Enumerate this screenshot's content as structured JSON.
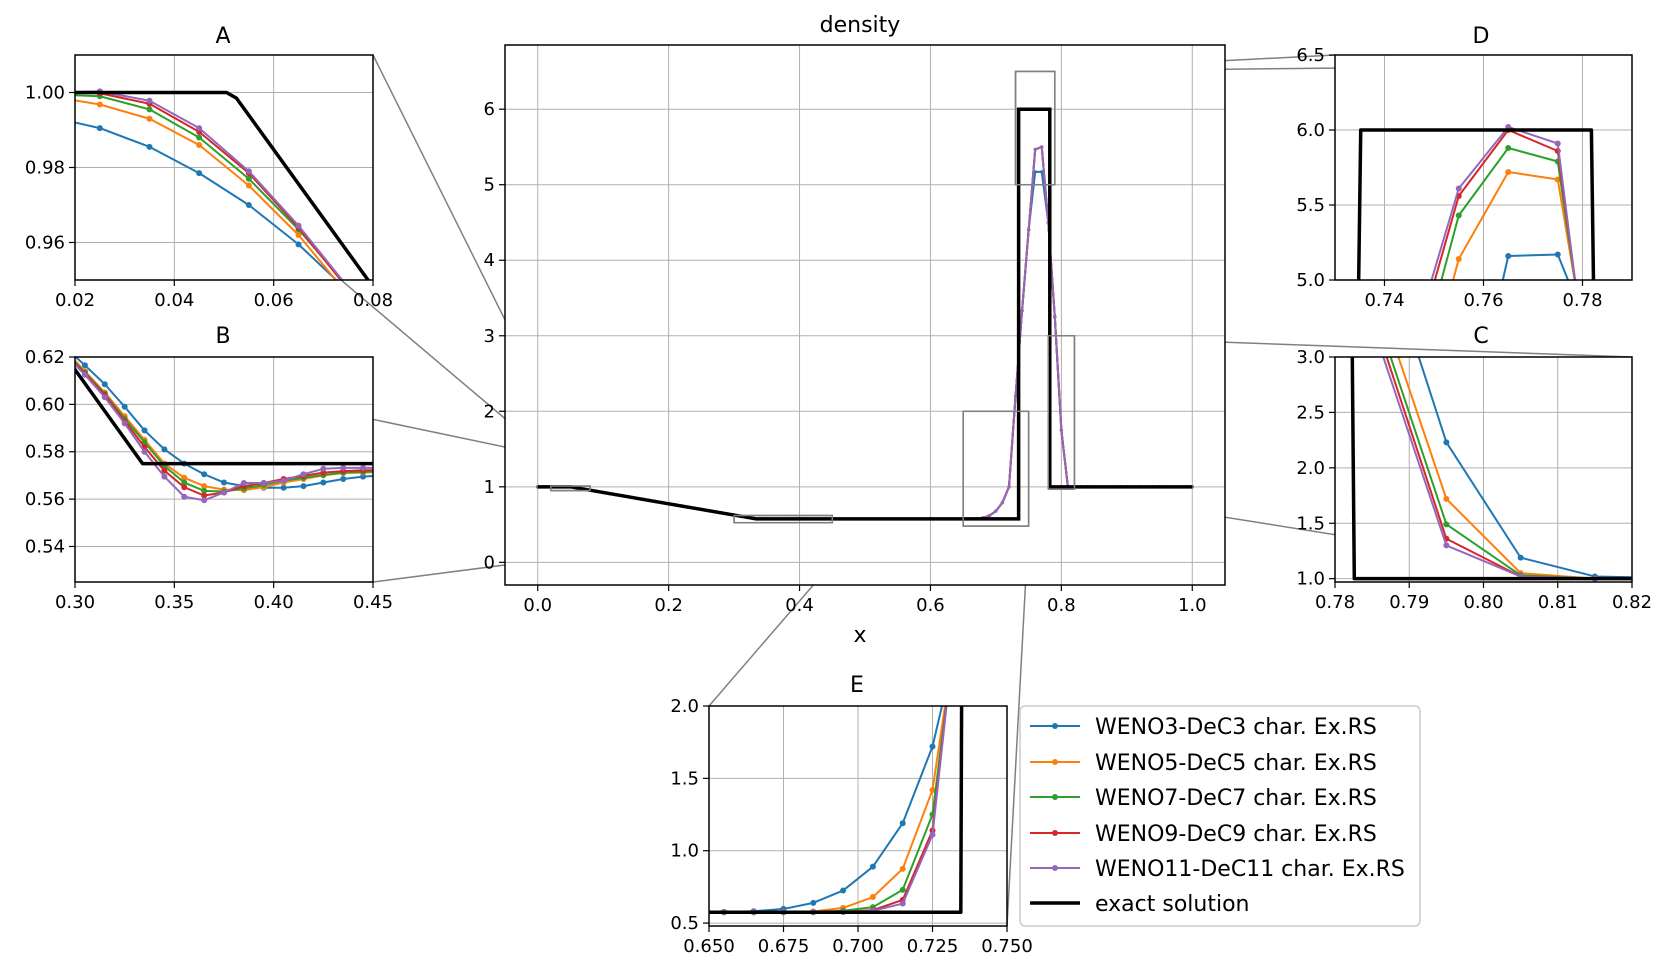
{
  "colors": {
    "WENO3": "#1f77b4",
    "WENO5": "#ff7f0e",
    "WENO7": "#2ca02c",
    "WENO9": "#d62728",
    "WENO11": "#9467bd",
    "exact": "#000000",
    "grid": "#b0b0b0",
    "connector": "#808080"
  },
  "legend": [
    {
      "key": "WENO3",
      "label": "WENO3-DeC3 char. Ex.RS"
    },
    {
      "key": "WENO5",
      "label": "WENO5-DeC5 char. Ex.RS"
    },
    {
      "key": "WENO7",
      "label": "WENO7-DeC7 char. Ex.RS"
    },
    {
      "key": "WENO9",
      "label": "WENO9-DeC9 char. Ex.RS"
    },
    {
      "key": "WENO11",
      "label": "WENO11-DeC11 char. Ex.RS"
    },
    {
      "key": "exact",
      "label": "exact solution"
    }
  ],
  "chart_data": [
    {
      "id": "main",
      "type": "line",
      "title": "density",
      "xlabel": "x",
      "ylabel": "",
      "xlim": [
        -0.05,
        1.05
      ],
      "ylim": [
        -0.3,
        6.85
      ],
      "xticks": [
        0.0,
        0.2,
        0.4,
        0.6,
        0.8,
        1.0
      ],
      "xtick_labels": [
        "0.0",
        "0.2",
        "0.4",
        "0.6",
        "0.8",
        "1.0"
      ],
      "yticks": [
        0,
        1,
        2,
        3,
        4,
        5,
        6
      ],
      "ytick_labels": [
        "0",
        "1",
        "2",
        "3",
        "4",
        "5",
        "6"
      ],
      "grid": true,
      "zoom_boxes": [
        {
          "label": "A",
          "x": [
            0.02,
            0.08
          ],
          "y": [
            0.95,
            1.01
          ]
        },
        {
          "label": "B",
          "x": [
            0.3,
            0.45
          ],
          "y": [
            0.525,
            0.62
          ]
        },
        {
          "label": "C",
          "x": [
            0.78,
            0.82
          ],
          "y": [
            0.97,
            3.0
          ]
        },
        {
          "label": "D",
          "x": [
            0.73,
            0.79
          ],
          "y": [
            5.0,
            6.5
          ]
        },
        {
          "label": "E",
          "x": [
            0.65,
            0.75
          ],
          "y": [
            0.48,
            2.0
          ]
        }
      ]
    },
    {
      "id": "A",
      "type": "line",
      "title": "A",
      "xlim": [
        0.02,
        0.08
      ],
      "ylim": [
        0.95,
        1.01
      ],
      "xticks": [
        0.02,
        0.04,
        0.06,
        0.08
      ],
      "xtick_labels": [
        "0.02",
        "0.04",
        "0.06",
        "0.08"
      ],
      "yticks": [
        0.96,
        0.98,
        1.0
      ],
      "ytick_labels": [
        "0.96",
        "0.98",
        "1.00"
      ],
      "grid": true,
      "series": {
        "WENO3": {
          "x": [
            0.015,
            0.025,
            0.035,
            0.045,
            0.055,
            0.065,
            0.075,
            0.085
          ],
          "y": [
            0.9935,
            0.9905,
            0.9855,
            0.9785,
            0.97,
            0.9595,
            0.947,
            0.933
          ]
        },
        "WENO5": {
          "x": [
            0.015,
            0.025,
            0.035,
            0.045,
            0.055,
            0.065,
            0.075,
            0.085
          ],
          "y": [
            0.999,
            0.9968,
            0.993,
            0.986,
            0.9752,
            0.962,
            0.946,
            0.928
          ]
        },
        "WENO7": {
          "x": [
            0.015,
            0.025,
            0.035,
            0.045,
            0.055,
            0.065,
            0.075,
            0.085
          ],
          "y": [
            0.9995,
            0.999,
            0.9955,
            0.988,
            0.977,
            0.9635,
            0.948,
            0.93
          ]
        },
        "WENO9": {
          "x": [
            0.015,
            0.025,
            0.035,
            0.045,
            0.055,
            0.065,
            0.075,
            0.085
          ],
          "y": [
            1.0,
            0.9998,
            0.997,
            0.9895,
            0.9785,
            0.964,
            0.9475,
            0.93
          ]
        },
        "WENO11": {
          "x": [
            0.015,
            0.025,
            0.035,
            0.045,
            0.055,
            0.065,
            0.075,
            0.085
          ],
          "y": [
            1.0,
            1.0003,
            0.9978,
            0.9905,
            0.979,
            0.9645,
            0.948,
            0.93
          ]
        },
        "exact": {
          "x": [
            0.015,
            0.0505,
            0.0525,
            0.079,
            0.085
          ],
          "y": [
            1.0,
            1.0,
            0.9985,
            0.95,
            0.939
          ]
        }
      }
    },
    {
      "id": "B",
      "type": "line",
      "title": "B",
      "xlim": [
        0.3,
        0.45
      ],
      "ylim": [
        0.525,
        0.62
      ],
      "xticks": [
        0.3,
        0.35,
        0.4,
        0.45
      ],
      "xtick_labels": [
        "0.30",
        "0.35",
        "0.40",
        "0.45"
      ],
      "yticks": [
        0.54,
        0.56,
        0.58,
        0.6,
        0.62
      ],
      "ytick_labels": [
        "0.54",
        "0.56",
        "0.58",
        "0.60",
        "0.62"
      ],
      "grid": true,
      "series": {
        "WENO3": {
          "x": [
            0.295,
            0.305,
            0.315,
            0.325,
            0.335,
            0.345,
            0.355,
            0.365,
            0.375,
            0.385,
            0.395,
            0.405,
            0.415,
            0.425,
            0.435,
            0.445,
            0.455
          ],
          "y": [
            0.624,
            0.6165,
            0.6085,
            0.599,
            0.589,
            0.581,
            0.575,
            0.5705,
            0.567,
            0.5655,
            0.5648,
            0.5648,
            0.5655,
            0.567,
            0.5685,
            0.5695,
            0.57
          ]
        },
        "WENO5": {
          "x": [
            0.295,
            0.305,
            0.315,
            0.325,
            0.335,
            0.345,
            0.355,
            0.365,
            0.375,
            0.385,
            0.395,
            0.405,
            0.415,
            0.425,
            0.435,
            0.445,
            0.455
          ],
          "y": [
            0.623,
            0.614,
            0.605,
            0.595,
            0.585,
            0.575,
            0.569,
            0.5655,
            0.564,
            0.5638,
            0.565,
            0.567,
            0.5685,
            0.57,
            0.571,
            0.5712,
            0.5715
          ]
        },
        "WENO7": {
          "x": [
            0.295,
            0.305,
            0.315,
            0.325,
            0.335,
            0.345,
            0.355,
            0.365,
            0.375,
            0.385,
            0.395,
            0.405,
            0.415,
            0.425,
            0.435,
            0.445,
            0.455
          ],
          "y": [
            0.622,
            0.6135,
            0.6045,
            0.594,
            0.584,
            0.574,
            0.567,
            0.5635,
            0.5632,
            0.5645,
            0.566,
            0.5678,
            0.569,
            0.5702,
            0.5712,
            0.5715,
            0.5718
          ]
        },
        "WENO9": {
          "x": [
            0.295,
            0.305,
            0.315,
            0.325,
            0.335,
            0.345,
            0.355,
            0.365,
            0.375,
            0.385,
            0.395,
            0.405,
            0.415,
            0.425,
            0.435,
            0.445,
            0.455
          ],
          "y": [
            0.622,
            0.613,
            0.604,
            0.593,
            0.582,
            0.572,
            0.565,
            0.5615,
            0.5628,
            0.5655,
            0.5668,
            0.5685,
            0.5698,
            0.5712,
            0.5718,
            0.5722,
            0.5722
          ]
        },
        "WENO11": {
          "x": [
            0.295,
            0.305,
            0.315,
            0.325,
            0.335,
            0.345,
            0.355,
            0.365,
            0.375,
            0.385,
            0.395,
            0.405,
            0.415,
            0.425,
            0.435,
            0.445,
            0.455
          ],
          "y": [
            0.621,
            0.6125,
            0.603,
            0.592,
            0.58,
            0.5695,
            0.561,
            0.5595,
            0.5628,
            0.5668,
            0.5668,
            0.5678,
            0.5705,
            0.5728,
            0.5732,
            0.5732,
            0.5732
          ]
        },
        "exact": {
          "x": [
            0.295,
            0.334,
            0.455
          ],
          "y": [
            0.6205,
            0.575,
            0.575
          ]
        }
      }
    },
    {
      "id": "C",
      "type": "line",
      "title": "C",
      "xlim": [
        0.78,
        0.82
      ],
      "ylim": [
        0.97,
        3.0
      ],
      "xticks": [
        0.78,
        0.79,
        0.8,
        0.81,
        0.82
      ],
      "xtick_labels": [
        "0.78",
        "0.79",
        "0.80",
        "0.81",
        "0.82"
      ],
      "yticks": [
        1.0,
        1.5,
        2.0,
        2.5,
        3.0
      ],
      "ytick_labels": [
        "1.0",
        "1.5",
        "2.0",
        "2.5",
        "3.0"
      ],
      "grid": true,
      "series": {
        "WENO3": {
          "x": [
            0.785,
            0.795,
            0.805,
            0.815,
            0.825
          ],
          "y": [
            4.3,
            2.23,
            1.19,
            1.02,
            1.005
          ]
        },
        "WENO5": {
          "x": [
            0.785,
            0.795,
            0.805,
            0.815,
            0.825
          ],
          "y": [
            3.7,
            1.72,
            1.05,
            1.0,
            1.0
          ]
        },
        "WENO7": {
          "x": [
            0.785,
            0.795,
            0.805,
            0.815,
            0.825
          ],
          "y": [
            3.5,
            1.49,
            1.03,
            1.0,
            1.0
          ]
        },
        "WENO9": {
          "x": [
            0.785,
            0.795,
            0.805,
            0.815,
            0.825
          ],
          "y": [
            3.4,
            1.36,
            1.02,
            1.0,
            1.0
          ]
        },
        "WENO11": {
          "x": [
            0.785,
            0.795,
            0.805,
            0.815,
            0.825
          ],
          "y": [
            3.3,
            1.3,
            1.02,
            1.0,
            1.0
          ]
        },
        "exact": {
          "x": [
            0.7823,
            0.7826,
            0.825
          ],
          "y": [
            3.2,
            1.0,
            1.0
          ]
        }
      }
    },
    {
      "id": "D",
      "type": "line",
      "title": "D",
      "xlim": [
        0.73,
        0.79
      ],
      "ylim": [
        5.0,
        6.5
      ],
      "xticks": [
        0.74,
        0.76,
        0.78
      ],
      "xtick_labels": [
        "0.74",
        "0.76",
        "0.78"
      ],
      "yticks": [
        5.0,
        5.5,
        6.0,
        6.5
      ],
      "ytick_labels": [
        "5.0",
        "5.5",
        "6.0",
        "6.5"
      ],
      "grid": true,
      "series": {
        "WENO3": {
          "x": [
            0.755,
            0.765,
            0.775,
            0.785
          ],
          "y": [
            3.7,
            5.16,
            5.17,
            4.35
          ]
        },
        "WENO5": {
          "x": [
            0.745,
            0.755,
            0.765,
            0.775,
            0.785
          ],
          "y": [
            3.9,
            5.14,
            5.72,
            5.67,
            3.7
          ]
        },
        "WENO7": {
          "x": [
            0.745,
            0.755,
            0.765,
            0.775,
            0.785
          ],
          "y": [
            4.2,
            5.43,
            5.88,
            5.79,
            3.5
          ]
        },
        "WENO9": {
          "x": [
            0.745,
            0.755,
            0.765,
            0.775,
            0.785
          ],
          "y": [
            4.4,
            5.56,
            6.0,
            5.86,
            3.4
          ]
        },
        "WENO11": {
          "x": [
            0.745,
            0.755,
            0.765,
            0.775,
            0.785
          ],
          "y": [
            4.5,
            5.61,
            6.02,
            5.91,
            3.3
          ]
        },
        "exact": {
          "x": [
            0.7347,
            0.7352,
            0.7818,
            0.7823
          ],
          "y": [
            4.8,
            6.0,
            6.0,
            4.8
          ]
        }
      }
    },
    {
      "id": "E",
      "type": "line",
      "title": "E",
      "xlim": [
        0.65,
        0.75
      ],
      "ylim": [
        0.48,
        2.0
      ],
      "xticks": [
        0.65,
        0.675,
        0.7,
        0.725,
        0.75
      ],
      "xtick_labels": [
        "0.650",
        "0.675",
        "0.700",
        "0.725",
        "0.750"
      ],
      "yticks": [
        0.5,
        1.0,
        1.5,
        2.0
      ],
      "ytick_labels": [
        "0.5",
        "1.0",
        "1.5",
        "2.0"
      ],
      "grid": true,
      "series": {
        "WENO3": {
          "x": [
            0.645,
            0.655,
            0.665,
            0.675,
            0.685,
            0.695,
            0.705,
            0.715,
            0.725,
            0.735
          ],
          "y": [
            0.575,
            0.577,
            0.582,
            0.598,
            0.64,
            0.725,
            0.89,
            1.19,
            1.72,
            2.6
          ]
        },
        "WENO5": {
          "x": [
            0.645,
            0.655,
            0.665,
            0.675,
            0.685,
            0.695,
            0.705,
            0.715,
            0.725,
            0.735
          ],
          "y": [
            0.575,
            0.575,
            0.575,
            0.576,
            0.58,
            0.605,
            0.68,
            0.875,
            1.42,
            2.8
          ]
        },
        "WENO7": {
          "x": [
            0.645,
            0.655,
            0.665,
            0.675,
            0.685,
            0.695,
            0.705,
            0.715,
            0.725,
            0.735
          ],
          "y": [
            0.575,
            0.575,
            0.575,
            0.575,
            0.576,
            0.585,
            0.61,
            0.73,
            1.25,
            2.9
          ]
        },
        "WENO9": {
          "x": [
            0.645,
            0.655,
            0.665,
            0.675,
            0.685,
            0.695,
            0.705,
            0.715,
            0.725,
            0.735
          ],
          "y": [
            0.575,
            0.575,
            0.575,
            0.575,
            0.575,
            0.578,
            0.59,
            0.66,
            1.14,
            3.0
          ]
        },
        "WENO11": {
          "x": [
            0.645,
            0.655,
            0.665,
            0.675,
            0.685,
            0.695,
            0.705,
            0.715,
            0.725,
            0.735
          ],
          "y": [
            0.575,
            0.575,
            0.575,
            0.575,
            0.575,
            0.576,
            0.585,
            0.635,
            1.11,
            3.0
          ]
        },
        "exact": {
          "x": [
            0.645,
            0.7345,
            0.7348
          ],
          "y": [
            0.575,
            0.575,
            2.2
          ]
        }
      }
    }
  ]
}
